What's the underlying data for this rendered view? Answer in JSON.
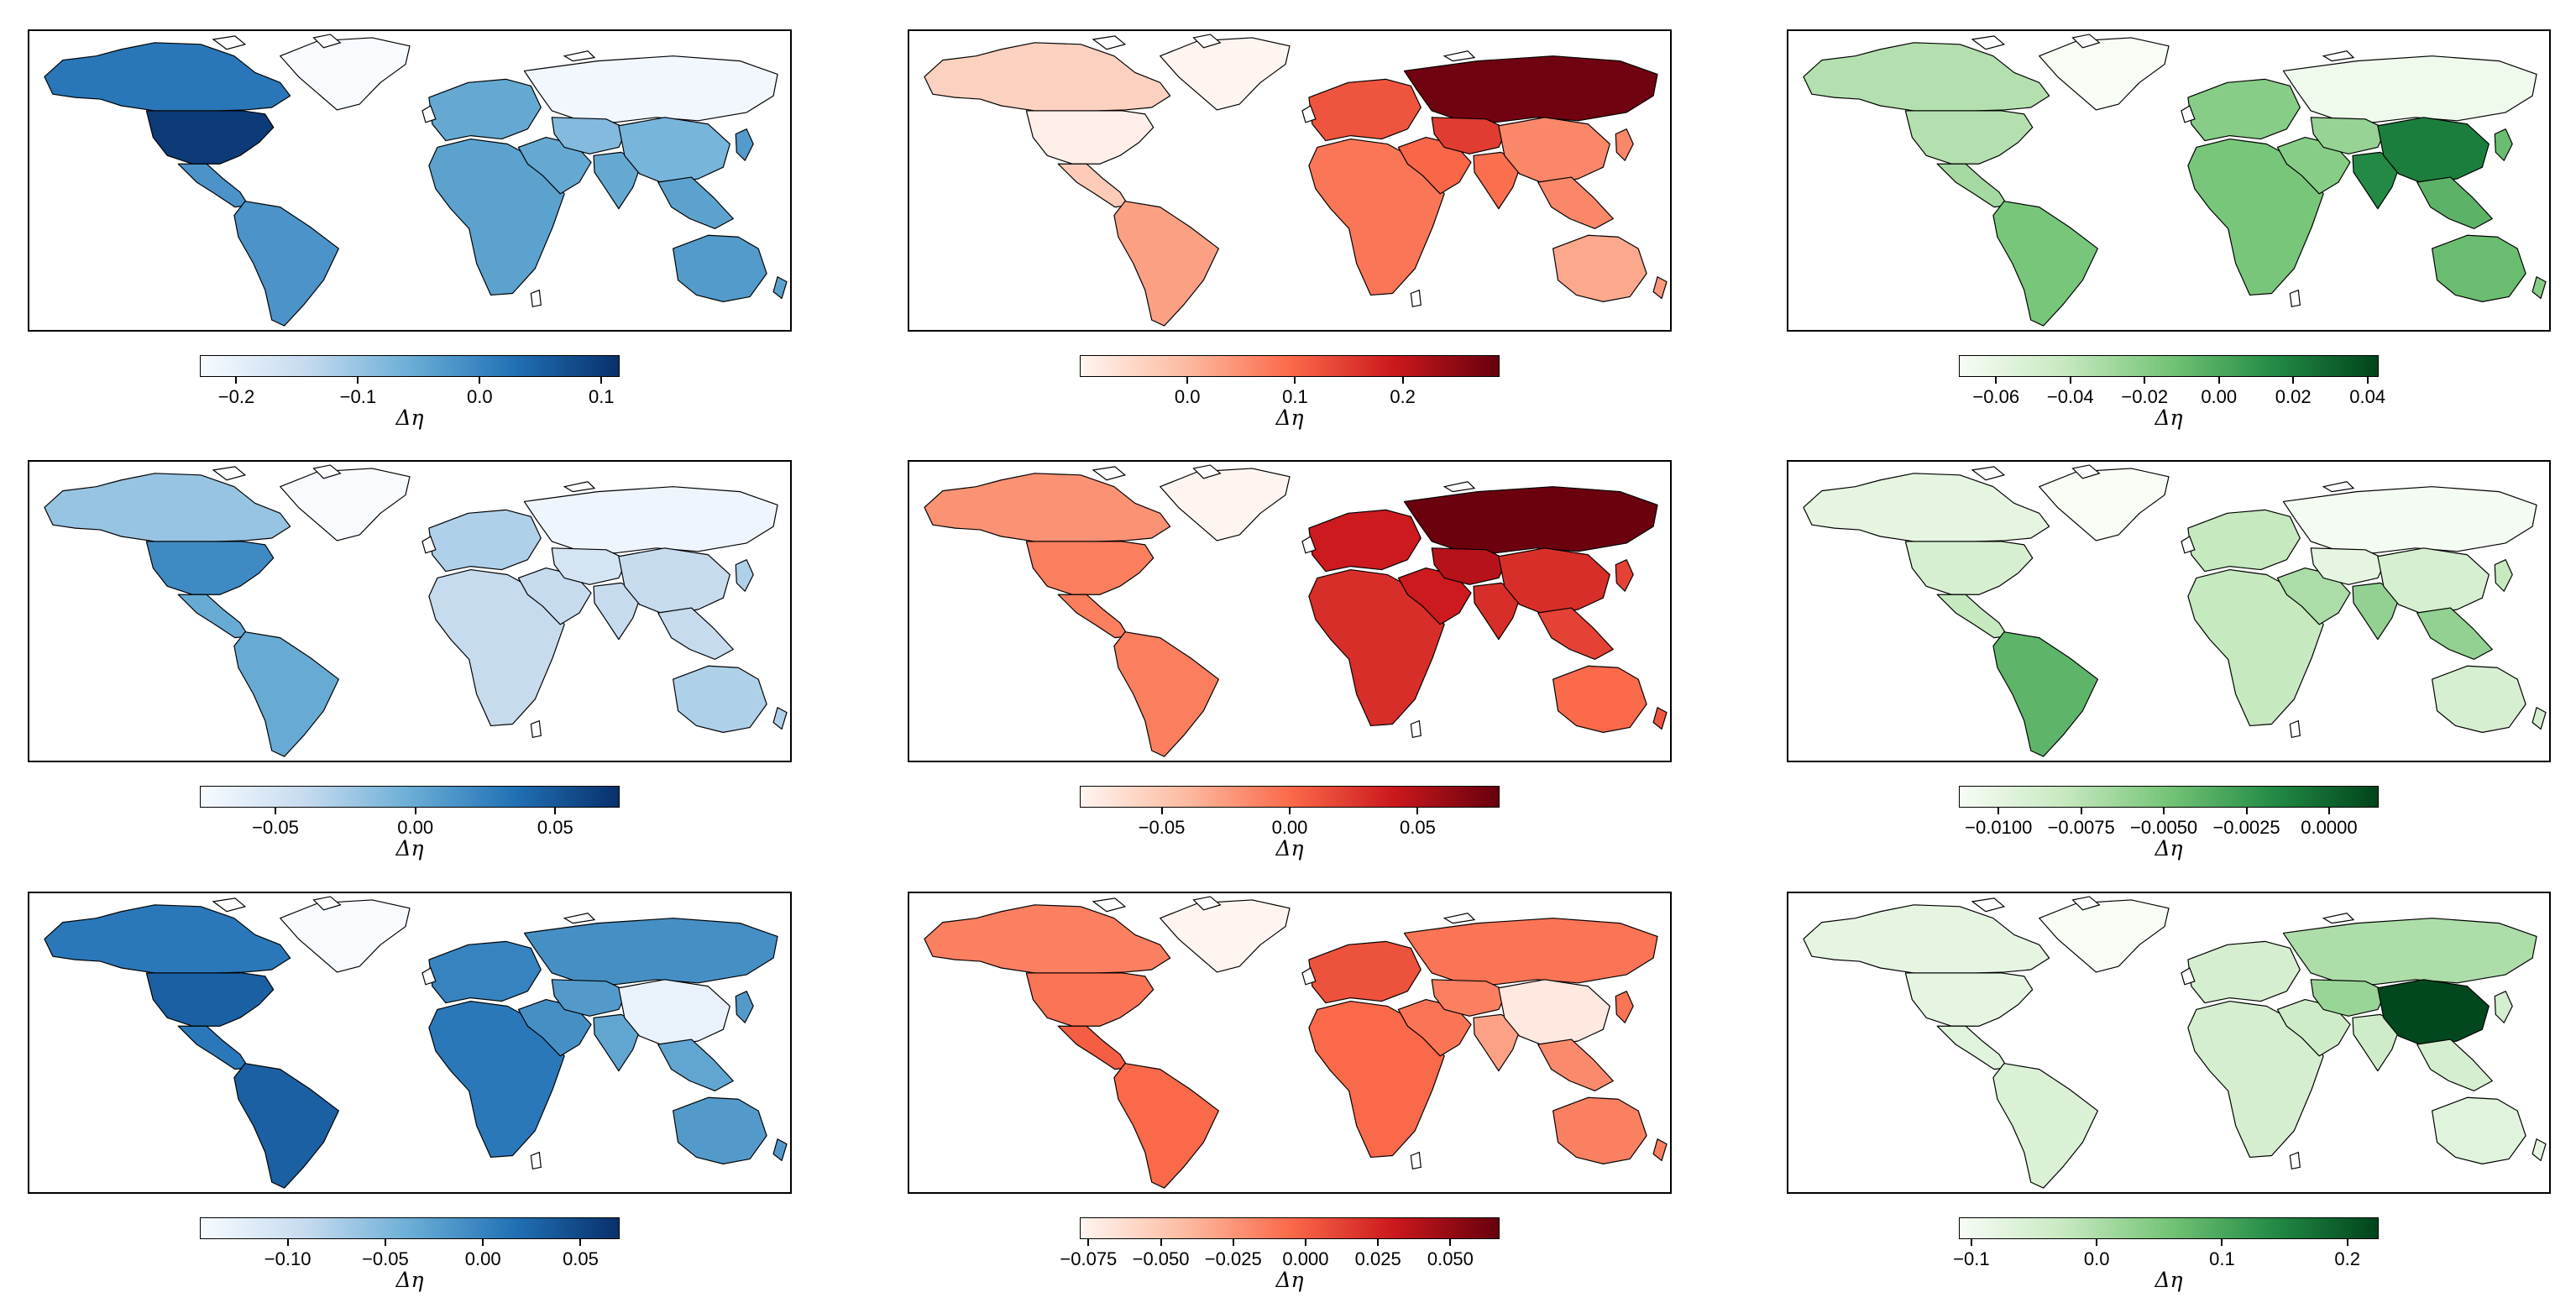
{
  "colormaps": {
    "blues": [
      "#f7fbff",
      "#c6dbef",
      "#6baed6",
      "#2171b5",
      "#08306b"
    ],
    "reds": [
      "#fff5f0",
      "#fcbba1",
      "#fb6a4a",
      "#cb181d",
      "#67000d"
    ],
    "greens": [
      "#f7fcf5",
      "#c7e9c0",
      "#74c476",
      "#238b45",
      "#00441b"
    ]
  },
  "panels": [
    {
      "id": "r1c1",
      "cmap": "blues",
      "colorbar_label": "Δη",
      "range": [
        -0.23,
        0.115
      ],
      "ticks": [
        -0.2,
        -0.1,
        0.0,
        0.1
      ],
      "tick_labels": [
        "−0.2",
        "−0.1",
        "0.0",
        "0.1"
      ],
      "regions": {
        "northamerica": 0.1,
        "canada": 0.02,
        "greenland": -0.23,
        "centralamerica": -0.02,
        "southamerica": -0.02,
        "europe": -0.05,
        "russia": -0.22,
        "africa": -0.04,
        "middleeast": -0.05,
        "centralasia": -0.08,
        "china": -0.07,
        "india": -0.05,
        "seasia": -0.04,
        "australia": -0.03,
        "newzealand": -0.04,
        "japan": -0.03
      }
    },
    {
      "id": "r1c2",
      "cmap": "reds",
      "colorbar_label": "Δη",
      "range": [
        -0.1,
        0.29
      ],
      "ticks": [
        0.0,
        0.1,
        0.2
      ],
      "tick_labels": [
        "0.0",
        "0.1",
        "0.2"
      ],
      "regions": {
        "northamerica": -0.09,
        "canada": -0.04,
        "greenland": -0.1,
        "centralamerica": -0.03,
        "southamerica": 0.03,
        "europe": 0.12,
        "russia": 0.28,
        "africa": 0.08,
        "middleeast": 0.1,
        "centralasia": 0.15,
        "china": 0.06,
        "india": 0.09,
        "seasia": 0.06,
        "australia": 0.02,
        "newzealand": 0.04,
        "japan": 0.06
      }
    },
    {
      "id": "r1c3",
      "cmap": "greens",
      "colorbar_label": "Δη",
      "range": [
        -0.07,
        0.043
      ],
      "ticks": [
        -0.06,
        -0.04,
        -0.02,
        0.0,
        0.02,
        0.04
      ],
      "tick_labels": [
        "−0.06",
        "−0.04",
        "−0.02",
        "0.00",
        "0.02",
        "0.04"
      ],
      "regions": {
        "northamerica": -0.035,
        "canada": -0.035,
        "greenland": -0.07,
        "centralamerica": -0.03,
        "southamerica": -0.015,
        "europe": -0.02,
        "russia": -0.065,
        "africa": -0.015,
        "middleeast": -0.02,
        "centralasia": -0.025,
        "china": 0.02,
        "india": 0.015,
        "seasia": -0.005,
        "australia": -0.01,
        "newzealand": -0.02,
        "japan": -0.01
      }
    },
    {
      "id": "r2c1",
      "cmap": "blues",
      "colorbar_label": "Δη",
      "range": [
        -0.077,
        0.073
      ],
      "ticks": [
        -0.05,
        0.0,
        0.05
      ],
      "tick_labels": [
        "−0.05",
        "0.00",
        "0.05"
      ],
      "regions": {
        "northamerica": 0.02,
        "canada": -0.02,
        "greenland": -0.077,
        "centralamerica": 0.0,
        "southamerica": 0.0,
        "europe": -0.03,
        "russia": -0.07,
        "africa": -0.04,
        "middleeast": -0.04,
        "centralasia": -0.05,
        "china": -0.04,
        "india": -0.04,
        "seasia": -0.04,
        "australia": -0.03,
        "newzealand": -0.03,
        "japan": -0.03
      }
    },
    {
      "id": "r2c2",
      "cmap": "reds",
      "colorbar_label": "Δη",
      "range": [
        -0.082,
        0.082
      ],
      "ticks": [
        -0.05,
        0.0,
        0.05
      ],
      "tick_labels": [
        "−0.05",
        "0.00",
        "0.05"
      ],
      "regions": {
        "northamerica": -0.01,
        "canada": -0.02,
        "greenland": -0.082,
        "centralamerica": -0.01,
        "southamerica": -0.01,
        "europe": 0.04,
        "russia": 0.08,
        "africa": 0.03,
        "middleeast": 0.04,
        "centralasia": 0.05,
        "china": 0.03,
        "india": 0.03,
        "seasia": 0.02,
        "australia": 0.0,
        "newzealand": 0.01,
        "japan": 0.02
      }
    },
    {
      "id": "r2c3",
      "cmap": "greens",
      "colorbar_label": "Δη",
      "range": [
        -0.0112,
        0.0015
      ],
      "ticks": [
        -0.01,
        -0.0075,
        -0.005,
        -0.0025,
        0.0
      ],
      "tick_labels": [
        "−0.0100",
        "−0.0075",
        "−0.0050",
        "−0.0025",
        "0.0000"
      ],
      "regions": {
        "northamerica": -0.009,
        "canada": -0.01,
        "greenland": -0.0112,
        "centralamerica": -0.008,
        "southamerica": -0.004,
        "europe": -0.008,
        "russia": -0.011,
        "africa": -0.008,
        "middleeast": -0.007,
        "centralasia": -0.01,
        "china": -0.009,
        "india": -0.006,
        "seasia": -0.006,
        "australia": -0.009,
        "newzealand": -0.009,
        "japan": -0.008
      }
    },
    {
      "id": "r3c1",
      "cmap": "blues",
      "colorbar_label": "Δη",
      "range": [
        -0.145,
        0.07
      ],
      "ticks": [
        -0.1,
        -0.05,
        0.0,
        0.05
      ],
      "tick_labels": [
        "−0.10",
        "−0.05",
        "0.00",
        "0.05"
      ],
      "regions": {
        "northamerica": 0.03,
        "canada": 0.01,
        "greenland": -0.145,
        "centralamerica": 0.01,
        "southamerica": 0.03,
        "europe": 0.0,
        "russia": -0.01,
        "africa": 0.01,
        "middleeast": -0.01,
        "centralasia": -0.02,
        "china": -0.13,
        "india": -0.03,
        "seasia": -0.03,
        "australia": -0.02,
        "newzealand": -0.02,
        "japan": -0.02
      }
    },
    {
      "id": "r3c2",
      "cmap": "reds",
      "colorbar_label": "Δη",
      "range": [
        -0.078,
        0.067
      ],
      "ticks": [
        -0.075,
        -0.05,
        -0.025,
        0.0,
        0.025,
        0.05
      ],
      "tick_labels": [
        "−0.075",
        "−0.050",
        "−0.025",
        "0.000",
        "0.025",
        "0.050"
      ],
      "regions": {
        "northamerica": -0.01,
        "canada": -0.015,
        "greenland": -0.078,
        "centralamerica": 0.0,
        "southamerica": -0.005,
        "europe": 0.005,
        "russia": -0.01,
        "africa": -0.005,
        "middleeast": -0.01,
        "centralasia": -0.015,
        "china": -0.07,
        "india": -0.03,
        "seasia": -0.02,
        "australia": -0.015,
        "newzealand": -0.015,
        "japan": -0.01
      }
    },
    {
      "id": "r3c3",
      "cmap": "greens",
      "colorbar_label": "Δη",
      "range": [
        -0.11,
        0.225
      ],
      "ticks": [
        -0.1,
        0.0,
        0.1,
        0.2
      ],
      "tick_labels": [
        "−0.1",
        "0.0",
        "0.1",
        "0.2"
      ],
      "regions": {
        "northamerica": -0.08,
        "canada": -0.08,
        "greenland": -0.11,
        "centralamerica": -0.07,
        "southamerica": -0.06,
        "europe": -0.05,
        "russia": 0.0,
        "africa": -0.05,
        "middleeast": -0.04,
        "centralasia": 0.02,
        "china": 0.22,
        "india": -0.04,
        "seasia": -0.05,
        "australia": -0.07,
        "newzealand": -0.08,
        "japan": -0.05
      }
    }
  ]
}
